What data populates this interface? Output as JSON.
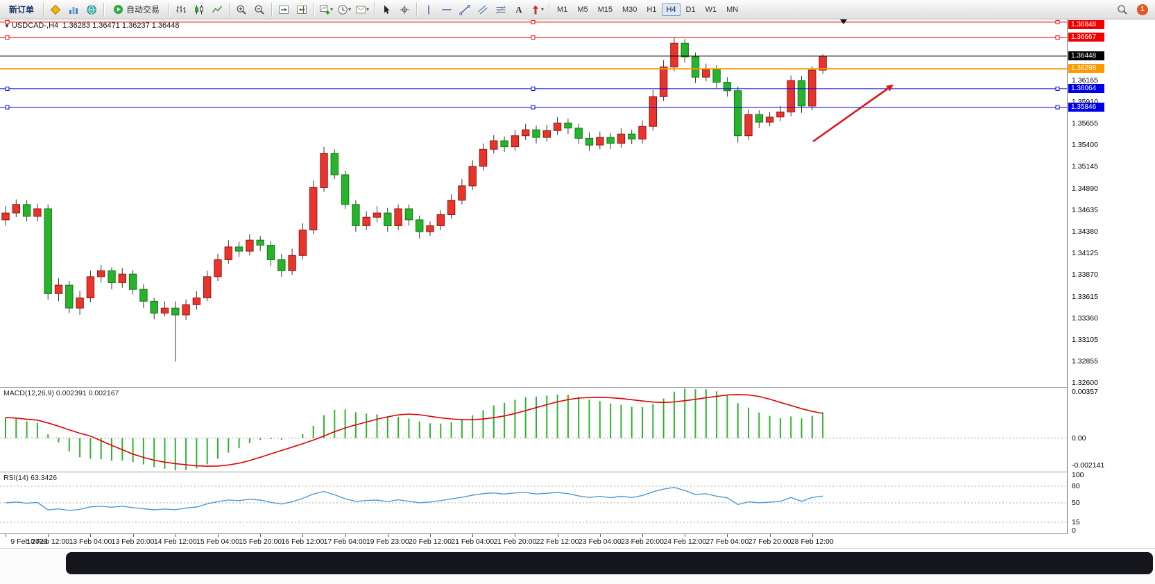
{
  "toolbar": {
    "new_order": "新订单",
    "autotrading": "自动交易",
    "timeframes": [
      "M1",
      "M5",
      "M15",
      "M30",
      "H1",
      "H4",
      "D1",
      "W1",
      "MN"
    ],
    "active_timeframe": "H4",
    "notification_count": "1",
    "items": [
      {
        "kind": "button",
        "name": "new-order-button",
        "label": "新订单"
      },
      {
        "kind": "sep"
      },
      {
        "kind": "icon",
        "name": "market-watch-icon"
      },
      {
        "kind": "icon",
        "name": "quotes-chart-icon"
      },
      {
        "kind": "icon",
        "name": "navigator-icon"
      },
      {
        "kind": "sep"
      },
      {
        "kind": "autotrading",
        "name": "autotrading-button",
        "label": "自动交易"
      },
      {
        "kind": "sep"
      },
      {
        "kind": "icon",
        "name": "bar-chart-type-icon"
      },
      {
        "kind": "icon",
        "name": "candlestick-type-icon"
      },
      {
        "kind": "icon",
        "name": "line-chart-type-icon"
      },
      {
        "kind": "sep"
      },
      {
        "kind": "icon",
        "name": "zoom-in-icon"
      },
      {
        "kind": "icon",
        "name": "zoom-out-icon"
      },
      {
        "kind": "sep"
      },
      {
        "kind": "icon",
        "name": "auto-scroll-icon"
      },
      {
        "kind": "icon",
        "name": "chart-shift-icon"
      },
      {
        "kind": "sep"
      },
      {
        "kind": "icon",
        "name": "new-chart-icon",
        "dropdown": true
      },
      {
        "kind": "icon",
        "name": "periods-icon",
        "dropdown": true
      },
      {
        "kind": "icon",
        "name": "templates-icon",
        "dropdown": true
      },
      {
        "kind": "sep"
      },
      {
        "kind": "icon",
        "name": "cursor-icon"
      },
      {
        "kind": "icon",
        "name": "crosshair-icon"
      },
      {
        "kind": "sep"
      },
      {
        "kind": "icon",
        "name": "vertical-line-icon"
      },
      {
        "kind": "icon",
        "name": "horizontal-line-icon"
      },
      {
        "kind": "icon",
        "name": "trendline-icon"
      },
      {
        "kind": "icon",
        "name": "equidistant-channel-icon"
      },
      {
        "kind": "icon",
        "name": "fibonacci-icon"
      },
      {
        "kind": "icon",
        "name": "text-icon"
      },
      {
        "kind": "icon",
        "name": "arrow-label-icon",
        "dropdown": true
      },
      {
        "kind": "sep"
      },
      {
        "kind": "timeframes"
      }
    ]
  },
  "chart": {
    "title": "USDCAD-,H4",
    "ohlc": "1.36283 1.36471 1.36237 1.36448",
    "macd_label": "MACD(12,26,9)",
    "macd_values": "0.002391 0.002167",
    "rsi_label": "RSI(14)",
    "rsi_value": "63.3426"
  },
  "chart_data": {
    "type": "candlestick",
    "symbol": "USDCAD",
    "timeframe": "H4",
    "last_ohlc": {
      "open": 1.36283,
      "high": 1.36471,
      "low": 1.36237,
      "close": 1.36448
    },
    "y_axis": {
      "max": 1.3688,
      "min": 1.3255,
      "ticks": [
        "1.36165",
        "1.35910",
        "1.35655",
        "1.35400",
        "1.35145",
        "1.34890",
        "1.34635",
        "1.34380",
        "1.34125",
        "1.33870",
        "1.33615",
        "1.33360",
        "1.33105",
        "1.32855",
        "1.32600"
      ]
    },
    "price_lines": [
      {
        "name": "resistance-line-upper",
        "price": 1.36848,
        "color": "#f00000",
        "label": "1.36848",
        "handles": true
      },
      {
        "name": "resistance-line-lower",
        "price": 1.36667,
        "color": "#f00000",
        "label": "1.36667",
        "handles": true
      },
      {
        "name": "pivot-line-orange",
        "price": 1.36298,
        "color": "#ff9900",
        "label": "1.36298",
        "width": 2
      },
      {
        "name": "support-line-upper",
        "price": 1.36064,
        "color": "#0000e8",
        "label": "1.36064",
        "handles": true
      },
      {
        "name": "support-line-lower",
        "price": 1.35846,
        "color": "#0000e8",
        "label": "1.35846",
        "handles": true
      },
      {
        "name": "current-price-line",
        "price": 1.36448,
        "color": "#000000",
        "label": "1.36448"
      }
    ],
    "candles": [
      [
        1.3452,
        1.3468,
        1.3445,
        1.346
      ],
      [
        1.346,
        1.3476,
        1.3455,
        1.347
      ],
      [
        1.347,
        1.3475,
        1.345,
        1.3456
      ],
      [
        1.3456,
        1.3471,
        1.345,
        1.3465
      ],
      [
        1.3465,
        1.347,
        1.3358,
        1.3365
      ],
      [
        1.3365,
        1.3383,
        1.3356,
        1.3375
      ],
      [
        1.3375,
        1.338,
        1.3342,
        1.3348
      ],
      [
        1.3348,
        1.3368,
        1.334,
        1.336
      ],
      [
        1.336,
        1.3392,
        1.3355,
        1.3385
      ],
      [
        1.3385,
        1.3399,
        1.3378,
        1.3392
      ],
      [
        1.3392,
        1.3396,
        1.337,
        1.3378
      ],
      [
        1.3378,
        1.3395,
        1.3372,
        1.3388
      ],
      [
        1.3388,
        1.3393,
        1.3364,
        1.337
      ],
      [
        1.337,
        1.3376,
        1.3348,
        1.3356
      ],
      [
        1.3356,
        1.336,
        1.3335,
        1.3342
      ],
      [
        1.3342,
        1.3356,
        1.3338,
        1.3348
      ],
      [
        1.3348,
        1.3356,
        1.3285,
        1.334
      ],
      [
        1.334,
        1.3358,
        1.3334,
        1.3352
      ],
      [
        1.3352,
        1.3368,
        1.3346,
        1.336
      ],
      [
        1.336,
        1.3392,
        1.3356,
        1.3385
      ],
      [
        1.3385,
        1.3412,
        1.338,
        1.3405
      ],
      [
        1.3405,
        1.3428,
        1.34,
        1.342
      ],
      [
        1.342,
        1.3426,
        1.3408,
        1.3415
      ],
      [
        1.3415,
        1.3435,
        1.341,
        1.3428
      ],
      [
        1.3428,
        1.3433,
        1.3415,
        1.3422
      ],
      [
        1.3422,
        1.3427,
        1.3398,
        1.3405
      ],
      [
        1.3405,
        1.3412,
        1.3385,
        1.3392
      ],
      [
        1.3392,
        1.3418,
        1.3387,
        1.341
      ],
      [
        1.341,
        1.3448,
        1.3405,
        1.344
      ],
      [
        1.344,
        1.3498,
        1.3435,
        1.349
      ],
      [
        1.349,
        1.3538,
        1.3485,
        1.353
      ],
      [
        1.353,
        1.3535,
        1.35,
        1.3505
      ],
      [
        1.3505,
        1.351,
        1.3465,
        1.347
      ],
      [
        1.347,
        1.3475,
        1.3438,
        1.3445
      ],
      [
        1.3445,
        1.3462,
        1.344,
        1.3455
      ],
      [
        1.3455,
        1.3468,
        1.3449,
        1.346
      ],
      [
        1.346,
        1.3466,
        1.3438,
        1.3445
      ],
      [
        1.3445,
        1.347,
        1.344,
        1.3465
      ],
      [
        1.3465,
        1.347,
        1.3445,
        1.3452
      ],
      [
        1.3452,
        1.3457,
        1.343,
        1.3438
      ],
      [
        1.3438,
        1.345,
        1.3433,
        1.3445
      ],
      [
        1.3445,
        1.3463,
        1.344,
        1.3458
      ],
      [
        1.3458,
        1.3482,
        1.3453,
        1.3475
      ],
      [
        1.3475,
        1.35,
        1.347,
        1.3492
      ],
      [
        1.3492,
        1.3522,
        1.3487,
        1.3515
      ],
      [
        1.3515,
        1.3542,
        1.351,
        1.3535
      ],
      [
        1.3535,
        1.3552,
        1.353,
        1.3545
      ],
      [
        1.3545,
        1.355,
        1.3532,
        1.3538
      ],
      [
        1.3538,
        1.3558,
        1.3533,
        1.3551
      ],
      [
        1.3551,
        1.3565,
        1.3546,
        1.3558
      ],
      [
        1.3558,
        1.3563,
        1.3542,
        1.3549
      ],
      [
        1.3549,
        1.3564,
        1.3544,
        1.3557
      ],
      [
        1.3557,
        1.3573,
        1.3552,
        1.3566
      ],
      [
        1.3566,
        1.3571,
        1.3553,
        1.356
      ],
      [
        1.356,
        1.3565,
        1.3541,
        1.3548
      ],
      [
        1.3548,
        1.3555,
        1.3533,
        1.354
      ],
      [
        1.354,
        1.3556,
        1.3535,
        1.3549
      ],
      [
        1.3549,
        1.3554,
        1.3535,
        1.3542
      ],
      [
        1.3542,
        1.356,
        1.3537,
        1.3553
      ],
      [
        1.3553,
        1.3558,
        1.3541,
        1.3547
      ],
      [
        1.3547,
        1.3569,
        1.3542,
        1.3562
      ],
      [
        1.3562,
        1.3605,
        1.3557,
        1.3597
      ],
      [
        1.3597,
        1.364,
        1.3592,
        1.3632
      ],
      [
        1.3632,
        1.3667,
        1.3627,
        1.366
      ],
      [
        1.366,
        1.3665,
        1.3637,
        1.3644
      ],
      [
        1.3644,
        1.3649,
        1.3613,
        1.362
      ],
      [
        1.362,
        1.3636,
        1.3615,
        1.3629
      ],
      [
        1.3629,
        1.3634,
        1.3607,
        1.3614
      ],
      [
        1.3614,
        1.362,
        1.3597,
        1.3604
      ],
      [
        1.3604,
        1.3609,
        1.3543,
        1.3551
      ],
      [
        1.3551,
        1.3582,
        1.3546,
        1.3576
      ],
      [
        1.3576,
        1.3581,
        1.356,
        1.3567
      ],
      [
        1.3567,
        1.3579,
        1.3562,
        1.3573
      ],
      [
        1.3573,
        1.3586,
        1.3568,
        1.3579
      ],
      [
        1.3579,
        1.3622,
        1.3574,
        1.3616
      ],
      [
        1.3616,
        1.3621,
        1.3578,
        1.3586
      ],
      [
        1.3586,
        1.3633,
        1.3581,
        1.36283
      ],
      [
        1.36283,
        1.36471,
        1.36237,
        1.36448
      ]
    ],
    "x_labels": [
      "9 Feb 2023",
      "10 Feb 12:00",
      "13 Feb 04:00",
      "13 Feb 20:00",
      "14 Feb 12:00",
      "15 Feb 04:00",
      "15 Feb 20:00",
      "16 Feb 12:00",
      "17 Feb 04:00",
      "19 Feb 23:00",
      "20 Feb 12:00",
      "21 Feb 04:00",
      "21 Feb 20:00",
      "22 Feb 12:00",
      "23 Feb 04:00",
      "23 Feb 20:00",
      "24 Feb 12:00",
      "27 Feb 04:00",
      "27 Feb 20:00",
      "28 Feb 12:00"
    ],
    "macd": {
      "name": "MACD(12,26,9)",
      "fast": 12,
      "slow": 26,
      "signal": 9,
      "current_values": [
        0.002391,
        0.002167
      ],
      "axis_max": 0.0039,
      "axis_min": -0.0026,
      "scale": [
        {
          "text": "0.00357",
          "value": 0.00357
        },
        {
          "text": "0.00",
          "value": 0
        },
        {
          "text": "-0.002141",
          "value": -0.002141
        }
      ]
    },
    "rsi": {
      "name": "RSI(14)",
      "period": 14,
      "current_value": 63.3426,
      "levels": [
        100,
        80,
        50,
        15,
        0
      ]
    },
    "annotations": [
      {
        "type": "arrow",
        "from": [
          1172,
          176
        ],
        "to": [
          1288,
          94
        ],
        "color": "#e01414"
      }
    ],
    "colors": {
      "bull": "#e8352b",
      "bull_border": "#991410",
      "bear": "#27b32b",
      "bear_border": "#0e7a12",
      "wick": "#333333",
      "macd_hist": "#2eb42e",
      "macd_signal": "#e00000",
      "rsi_line": "#4f9bd5"
    }
  }
}
